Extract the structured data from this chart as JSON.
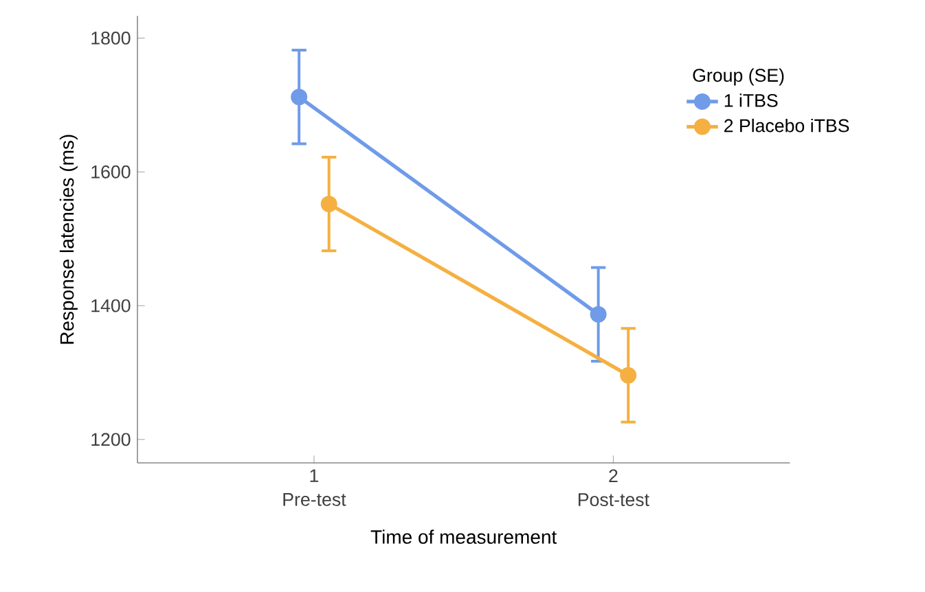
{
  "chart_data": {
    "type": "line",
    "xlabel": "Time of measurement",
    "ylabel": "Response latencies (ms)",
    "legend_title": "Group (SE)",
    "categories": [
      "1 Pre-test",
      "2 Post-test"
    ],
    "ylim": [
      1165,
      1833
    ],
    "yticks": [
      1200,
      1400,
      1600,
      1800
    ],
    "series": [
      {
        "name": "1  iTBS",
        "color": "#6f9be8",
        "values": [
          1712,
          1387
        ],
        "errors": [
          70,
          70
        ]
      },
      {
        "name": "2  Placebo iTBS",
        "color": "#f5b041",
        "values": [
          1552,
          1296
        ],
        "errors": [
          70,
          70
        ]
      }
    ],
    "marker": "circle",
    "line_style": "solid",
    "legend": "right"
  }
}
